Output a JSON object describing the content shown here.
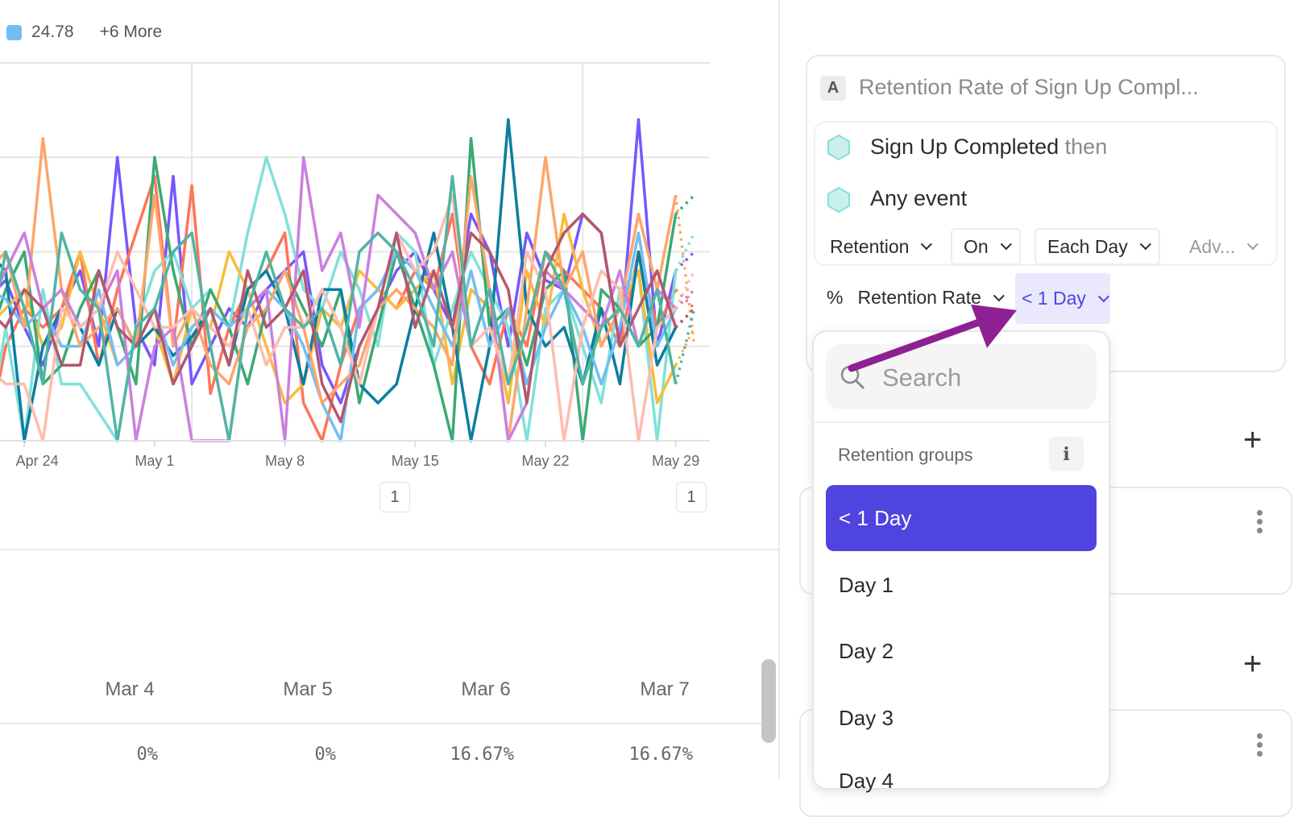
{
  "legend": {
    "swatch_color": "#72bef4",
    "value": "24.78",
    "more": "+6 More"
  },
  "chart_data": {
    "type": "line",
    "title": "",
    "xlabel": "",
    "ylabel": "",
    "ylim": [
      0,
      40
    ],
    "grid": true,
    "x_ticks": [
      "Apr 24",
      "May 1",
      "May 8",
      "May 15",
      "May 22",
      "May 29"
    ],
    "x": [
      "Apr 22",
      "Apr 23",
      "Apr 24",
      "Apr 25",
      "Apr 26",
      "Apr 27",
      "Apr 28",
      "Apr 29",
      "Apr 30",
      "May 1",
      "May 2",
      "May 3",
      "May 4",
      "May 5",
      "May 6",
      "May 7",
      "May 8",
      "May 9",
      "May 10",
      "May 11",
      "May 12",
      "May 13",
      "May 14",
      "May 15",
      "May 16",
      "May 17",
      "May 18",
      "May 19",
      "May 20",
      "May 21",
      "May 22",
      "May 23",
      "May 24",
      "May 25",
      "May 26",
      "May 27",
      "May 28",
      "May 29",
      "May 30"
    ],
    "page_markers": [
      "1",
      "1"
    ],
    "series": [
      {
        "color": "#7856ff",
        "values": [
          15,
          17,
          12,
          8,
          14,
          18,
          10,
          30,
          12,
          8,
          28,
          6,
          10,
          14,
          12,
          16,
          18,
          20,
          8,
          4,
          10,
          14,
          18,
          20,
          16,
          12,
          24,
          20,
          10,
          22,
          17,
          16,
          24,
          22,
          10,
          34,
          10,
          18,
          20
        ]
      },
      {
        "color": "#ff7557",
        "values": [
          0,
          10,
          14,
          12,
          14,
          20,
          8,
          16,
          22,
          28,
          10,
          27,
          5,
          12,
          16,
          18,
          22,
          4,
          0,
          8,
          14,
          16,
          14,
          18,
          16,
          24,
          10,
          6,
          14,
          10,
          20,
          18,
          16,
          14,
          10,
          20,
          12,
          16,
          14
        ]
      },
      {
        "color": "#80e1d9",
        "values": [
          0,
          12,
          0,
          16,
          6,
          6,
          3,
          0,
          12,
          18,
          20,
          14,
          16,
          12,
          22,
          30,
          24,
          16,
          14,
          20,
          16,
          10,
          22,
          20,
          8,
          14,
          20,
          16,
          12,
          0,
          14,
          16,
          10,
          4,
          16,
          18,
          0,
          18,
          22
        ]
      },
      {
        "color": "#f8bc3b",
        "values": [
          12,
          14,
          16,
          10,
          12,
          20,
          14,
          8,
          10,
          12,
          6,
          14,
          12,
          20,
          16,
          10,
          4,
          6,
          14,
          12,
          18,
          16,
          14,
          16,
          18,
          6,
          16,
          14,
          4,
          18,
          12,
          24,
          16,
          10,
          14,
          18,
          4,
          8,
          12
        ]
      },
      {
        "color": "#3ba974",
        "values": [
          10,
          16,
          20,
          6,
          8,
          14,
          18,
          12,
          6,
          30,
          18,
          10,
          16,
          12,
          6,
          14,
          18,
          14,
          10,
          16,
          4,
          12,
          20,
          14,
          8,
          0,
          32,
          12,
          14,
          8,
          16,
          18,
          0,
          16,
          14,
          10,
          12,
          24,
          26
        ]
      },
      {
        "color": "#0d7ea0",
        "values": [
          20,
          18,
          0,
          10,
          14,
          12,
          8,
          14,
          10,
          12,
          9,
          11,
          14,
          8,
          16,
          18,
          14,
          6,
          16,
          16,
          6,
          4,
          6,
          14,
          22,
          12,
          0,
          10,
          34,
          14,
          10,
          12,
          6,
          14,
          6,
          20,
          8,
          12,
          14
        ]
      },
      {
        "color": "#72bef4",
        "values": [
          16,
          15,
          12,
          14,
          10,
          10,
          16,
          8,
          10,
          14,
          8,
          12,
          14,
          12,
          14,
          16,
          14,
          10,
          4,
          0,
          14,
          16,
          20,
          18,
          14,
          10,
          18,
          10,
          14,
          6,
          12,
          16,
          12,
          6,
          12,
          22,
          10,
          14,
          16
        ]
      },
      {
        "color": "#ffa56b",
        "values": [
          18,
          20,
          12,
          32,
          16,
          10,
          12,
          14,
          10,
          26,
          10,
          14,
          8,
          6,
          12,
          14,
          18,
          12,
          4,
          6,
          8,
          14,
          16,
          14,
          12,
          8,
          28,
          16,
          0,
          14,
          30,
          16,
          20,
          10,
          14,
          24,
          16,
          26,
          10
        ]
      },
      {
        "color": "#cc7fdd",
        "values": [
          14,
          18,
          22,
          14,
          16,
          12,
          14,
          18,
          0,
          10,
          12,
          0,
          0,
          0,
          14,
          16,
          0,
          30,
          18,
          22,
          12,
          26,
          24,
          22,
          16,
          20,
          10,
          16,
          0,
          4,
          18,
          16,
          14,
          12,
          18,
          10,
          16,
          14,
          16
        ]
      },
      {
        "color": "#ffbcae",
        "values": [
          8,
          6,
          6,
          0,
          14,
          12,
          14,
          20,
          16,
          12,
          12,
          14,
          12,
          10,
          14,
          8,
          12,
          12,
          16,
          12,
          6,
          14,
          22,
          18,
          20,
          26,
          10,
          12,
          6,
          20,
          16,
          0,
          12,
          18,
          16,
          0,
          12,
          14,
          18
        ]
      },
      {
        "color": "#b2596e",
        "values": [
          14,
          12,
          16,
          14,
          8,
          8,
          18,
          12,
          10,
          14,
          6,
          10,
          14,
          8,
          18,
          12,
          14,
          18,
          6,
          2,
          10,
          14,
          22,
          12,
          18,
          12,
          22,
          20,
          16,
          4,
          18,
          22,
          24,
          22,
          10,
          14,
          18,
          12,
          14
        ]
      },
      {
        "color": "#4fb5a3",
        "values": [
          10,
          20,
          14,
          6,
          22,
          16,
          14,
          0,
          12,
          14,
          20,
          22,
          10,
          0,
          14,
          20,
          14,
          12,
          14,
          8,
          20,
          22,
          20,
          16,
          10,
          28,
          10,
          16,
          6,
          12,
          20,
          16,
          6,
          12,
          14,
          10,
          16,
          6,
          14
        ]
      }
    ]
  },
  "table": {
    "columns": [
      "Mar 4",
      "Mar 5",
      "Mar 6",
      "Mar 7"
    ],
    "values": [
      "0%",
      "0%",
      "16.67%",
      "16.67%"
    ]
  },
  "metric_card": {
    "badge": "A",
    "title": "Retention Rate of Sign Up Compl...",
    "events": [
      {
        "name": "Sign Up Completed",
        "suffix": "then",
        "icon_color": "#c9f0ec"
      },
      {
        "name": "Any event",
        "suffix": "",
        "icon_color": "#c9f0ec"
      }
    ],
    "dropdowns": {
      "type": "Retention",
      "mode": "On",
      "period": "Each Day",
      "advanced": "Adv..."
    },
    "measure_symbol": "%",
    "measure": "Retention Rate",
    "bucket": "< 1 Day"
  },
  "popup": {
    "search_placeholder": "Search",
    "section_title": "Retention groups",
    "info": "i",
    "options": [
      "< 1 Day",
      "Day 1",
      "Day 2",
      "Day 3",
      "Day 4"
    ],
    "selected": "< 1 Day",
    "accent": "#4f44e0"
  },
  "annotation": {
    "arrow_color": "#8e2093"
  }
}
